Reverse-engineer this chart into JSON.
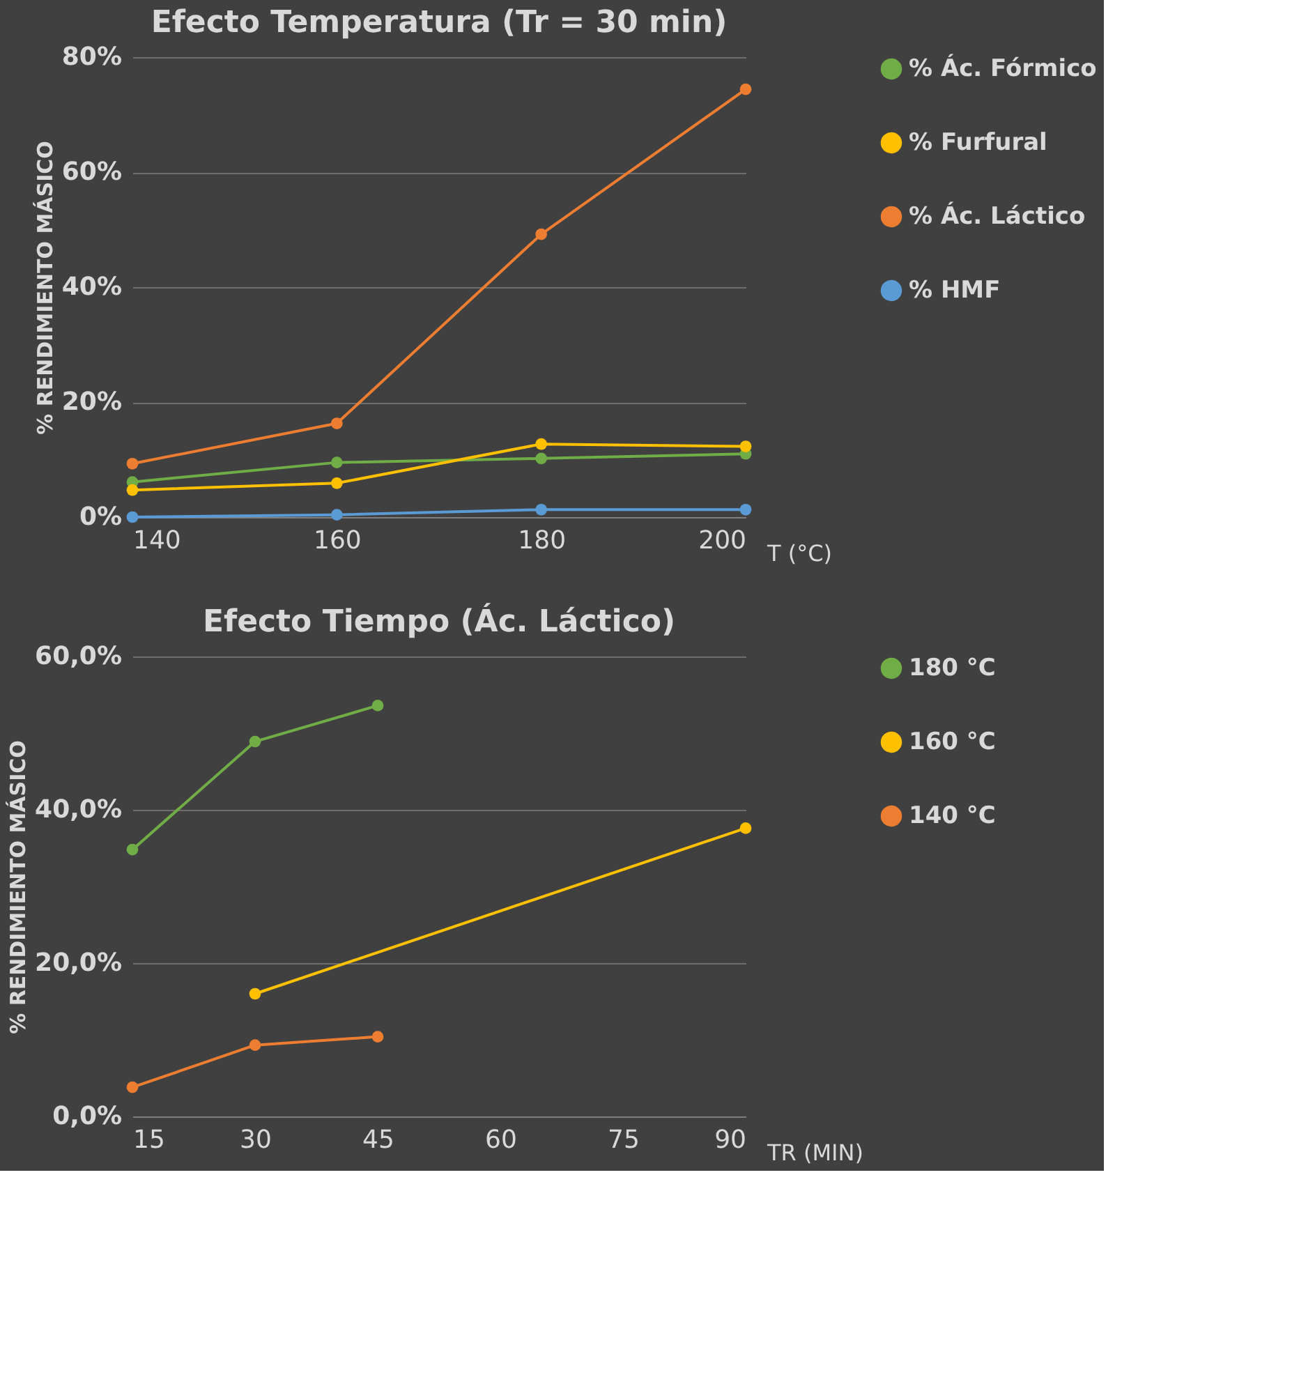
{
  "chart_data": [
    {
      "type": "line",
      "title": "Efecto Temperatura (Tr = 30 min)",
      "xlabel": "T (°C)",
      "ylabel": "% RENDIMIENTO MÁSICO",
      "x": [
        140,
        160,
        180,
        200
      ],
      "xlim": [
        140,
        200
      ],
      "xticks": [
        140,
        160,
        180,
        200
      ],
      "ylim": [
        0,
        80
      ],
      "yticks": [
        {
          "value": 0,
          "label": "0%"
        },
        {
          "value": 20,
          "label": "20%"
        },
        {
          "value": 40,
          "label": "40%"
        },
        {
          "value": 60,
          "label": "60%"
        },
        {
          "value": 80,
          "label": "80%"
        }
      ],
      "grid": "y",
      "legend": "right",
      "marker": "circle",
      "line_style": "solid",
      "series": [
        {
          "name": "% Ác. Fórmico",
          "color": "#70ad47",
          "values": [
            6.1,
            9.5,
            10.2,
            11.0
          ]
        },
        {
          "name": "% Furfural",
          "color": "#ffc000",
          "values": [
            4.7,
            5.9,
            12.7,
            12.3
          ]
        },
        {
          "name": "% Ác. Láctico",
          "color": "#ed7d31",
          "values": [
            9.3,
            16.3,
            49.2,
            74.4
          ]
        },
        {
          "name": "% HMF",
          "color": "#5b9bd5",
          "values": [
            0,
            0.4,
            1.3,
            1.3
          ]
        }
      ]
    },
    {
      "type": "line",
      "title": "Efecto Tiempo (Ác. Láctico)",
      "xlabel": "TR (MIN)",
      "ylabel": "% RENDIMIENTO MÁSICO",
      "xlim": [
        15,
        90
      ],
      "xticks": [
        15,
        30,
        45,
        60,
        75,
        90
      ],
      "ylim": [
        0,
        60
      ],
      "yticks": [
        {
          "value": 0,
          "label": "0,0%"
        },
        {
          "value": 20,
          "label": "20,0%"
        },
        {
          "value": 40,
          "label": "40,0%"
        },
        {
          "value": 60,
          "label": "60,0%"
        }
      ],
      "grid": "y",
      "legend": "right",
      "marker": "circle",
      "line_style": "solid",
      "series": [
        {
          "name": "180 °C",
          "color": "#70ad47",
          "x": [
            15,
            30,
            45
          ],
          "values": [
            34.8,
            48.9,
            53.6
          ]
        },
        {
          "name": "160 °C",
          "color": "#ffc000",
          "x": [
            30,
            90
          ],
          "values": [
            16.0,
            37.6
          ]
        },
        {
          "name": "140 °C",
          "color": "#ed7d31",
          "x": [
            15,
            30,
            45
          ],
          "values": [
            3.8,
            9.3,
            10.4
          ]
        }
      ]
    }
  ]
}
